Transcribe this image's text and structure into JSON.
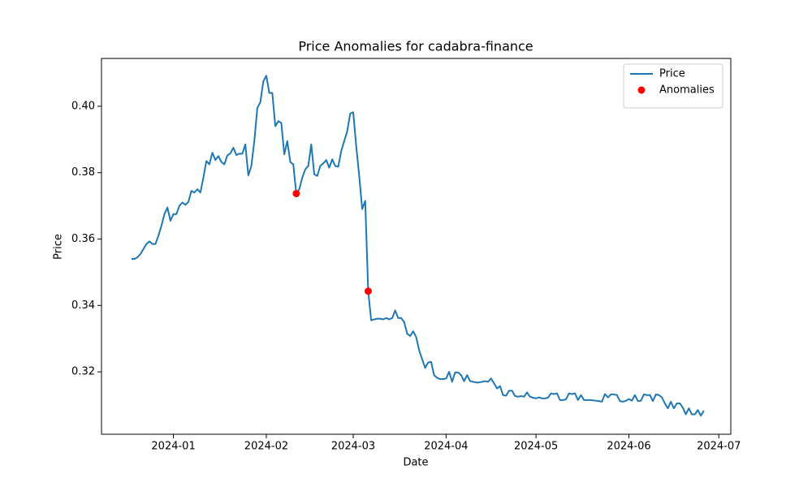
{
  "chart_data": {
    "type": "line",
    "title": "Price Anomalies for cadabra-finance",
    "xlabel": "Date",
    "ylabel": "Price",
    "legend": "upper right",
    "series": [
      {
        "name": "Price",
        "type": "line",
        "color": "#1f77b4",
        "x": [
          "2023-12-18",
          "2023-12-19",
          "2023-12-20",
          "2023-12-21",
          "2023-12-22",
          "2023-12-23",
          "2023-12-24",
          "2023-12-25",
          "2023-12-26",
          "2023-12-27",
          "2023-12-28",
          "2023-12-29",
          "2023-12-30",
          "2023-12-31",
          "2024-01-01",
          "2024-01-02",
          "2024-01-03",
          "2024-01-04",
          "2024-01-05",
          "2024-01-06",
          "2024-01-07",
          "2024-01-08",
          "2024-01-09",
          "2024-01-10",
          "2024-01-11",
          "2024-01-12",
          "2024-01-13",
          "2024-01-14",
          "2024-01-15",
          "2024-01-16",
          "2024-01-17",
          "2024-01-18",
          "2024-01-19",
          "2024-01-20",
          "2024-01-21",
          "2024-01-22",
          "2024-01-23",
          "2024-01-24",
          "2024-01-25",
          "2024-01-26",
          "2024-01-27",
          "2024-01-28",
          "2024-01-29",
          "2024-01-30",
          "2024-01-31",
          "2024-02-01",
          "2024-02-02",
          "2024-02-03",
          "2024-02-04",
          "2024-02-05",
          "2024-02-06",
          "2024-02-07",
          "2024-02-08",
          "2024-02-09",
          "2024-02-10",
          "2024-02-11",
          "2024-02-12",
          "2024-02-13",
          "2024-02-14",
          "2024-02-15",
          "2024-02-16",
          "2024-02-17",
          "2024-02-18",
          "2024-02-19",
          "2024-02-20",
          "2024-02-21",
          "2024-02-22",
          "2024-02-23",
          "2024-02-24",
          "2024-02-25",
          "2024-02-26",
          "2024-02-27",
          "2024-02-28",
          "2024-02-29",
          "2024-03-01",
          "2024-03-02",
          "2024-03-03",
          "2024-03-04",
          "2024-03-05",
          "2024-03-06",
          "2024-03-07",
          "2024-03-08",
          "2024-03-09",
          "2024-03-10",
          "2024-03-11",
          "2024-03-12",
          "2024-03-13",
          "2024-03-14",
          "2024-03-15",
          "2024-03-16",
          "2024-03-17",
          "2024-03-18",
          "2024-03-19",
          "2024-03-20",
          "2024-03-21",
          "2024-03-22",
          "2024-03-23",
          "2024-03-24",
          "2024-03-25",
          "2024-03-26",
          "2024-03-27",
          "2024-03-28",
          "2024-03-29",
          "2024-03-30",
          "2024-03-31",
          "2024-04-01",
          "2024-04-02",
          "2024-04-03",
          "2024-04-04",
          "2024-04-05",
          "2024-04-06",
          "2024-04-07",
          "2024-04-08",
          "2024-04-09",
          "2024-04-10",
          "2024-04-11",
          "2024-04-12",
          "2024-04-13",
          "2024-04-14",
          "2024-04-15",
          "2024-04-16",
          "2024-04-17",
          "2024-04-18",
          "2024-04-19",
          "2024-04-20",
          "2024-04-21",
          "2024-04-22",
          "2024-04-23",
          "2024-04-24",
          "2024-04-25",
          "2024-04-26",
          "2024-04-27",
          "2024-04-28",
          "2024-04-29",
          "2024-04-30",
          "2024-05-01",
          "2024-05-02",
          "2024-05-03",
          "2024-05-04",
          "2024-05-05",
          "2024-05-06",
          "2024-05-07",
          "2024-05-08",
          "2024-05-09",
          "2024-05-10",
          "2024-05-11",
          "2024-05-12",
          "2024-05-13",
          "2024-05-14",
          "2024-05-15",
          "2024-05-16",
          "2024-05-17",
          "2024-05-18",
          "2024-05-19",
          "2024-05-20",
          "2024-05-21",
          "2024-05-22",
          "2024-05-23",
          "2024-05-24",
          "2024-05-25",
          "2024-05-26",
          "2024-05-27",
          "2024-05-28",
          "2024-05-29",
          "2024-05-30",
          "2024-05-31",
          "2024-06-01",
          "2024-06-02",
          "2024-06-03",
          "2024-06-04",
          "2024-06-05",
          "2024-06-06",
          "2024-06-07",
          "2024-06-08",
          "2024-06-09",
          "2024-06-10",
          "2024-06-11",
          "2024-06-12",
          "2024-06-13",
          "2024-06-14",
          "2024-06-15",
          "2024-06-16",
          "2024-06-17",
          "2024-06-18",
          "2024-06-19",
          "2024-06-20",
          "2024-06-21",
          "2024-06-22",
          "2024-06-23",
          "2024-06-24",
          "2024-06-25",
          "2024-06-26"
        ],
        "values": [
          0.354,
          0.354,
          0.3545,
          0.3555,
          0.357,
          0.3585,
          0.3593,
          0.3585,
          0.3585,
          0.361,
          0.364,
          0.3675,
          0.3695,
          0.3655,
          0.3675,
          0.3675,
          0.37,
          0.371,
          0.3703,
          0.3712,
          0.3745,
          0.374,
          0.375,
          0.374,
          0.3785,
          0.3835,
          0.3825,
          0.386,
          0.3838,
          0.385,
          0.3832,
          0.3825,
          0.3852,
          0.3858,
          0.3875,
          0.3853,
          0.3857,
          0.3857,
          0.3885,
          0.3792,
          0.382,
          0.3895,
          0.3995,
          0.4012,
          0.4075,
          0.4092,
          0.404,
          0.404,
          0.394,
          0.3955,
          0.395,
          0.3855,
          0.3895,
          0.3832,
          0.3825,
          0.3737,
          0.375,
          0.3785,
          0.381,
          0.382,
          0.3885,
          0.3795,
          0.379,
          0.382,
          0.3828,
          0.3838,
          0.3815,
          0.384,
          0.382,
          0.3818,
          0.3865,
          0.3895,
          0.3925,
          0.3978,
          0.3982,
          0.388,
          0.379,
          0.369,
          0.3715,
          0.3443,
          0.3355,
          0.3358,
          0.336,
          0.336,
          0.3358,
          0.3362,
          0.3358,
          0.3362,
          0.3385,
          0.3362,
          0.3362,
          0.335,
          0.3315,
          0.3308,
          0.3322,
          0.3305,
          0.3265,
          0.3238,
          0.3212,
          0.3228,
          0.323,
          0.319,
          0.3182,
          0.3178,
          0.3178,
          0.318,
          0.32,
          0.317,
          0.3198,
          0.3198,
          0.319,
          0.3172,
          0.319,
          0.3172,
          0.317,
          0.3168,
          0.3168,
          0.317,
          0.3172,
          0.317,
          0.318,
          0.3165,
          0.315,
          0.3157,
          0.313,
          0.3128,
          0.3143,
          0.3143,
          0.3127,
          0.3125,
          0.3127,
          0.3125,
          0.3138,
          0.3125,
          0.3122,
          0.312,
          0.3123,
          0.312,
          0.312,
          0.3122,
          0.3135,
          0.3133,
          0.3135,
          0.3115,
          0.3115,
          0.3117,
          0.3135,
          0.3133,
          0.3135,
          0.3115,
          0.313,
          0.3115,
          0.3115,
          0.3115,
          0.3114,
          0.3113,
          0.3112,
          0.311,
          0.3133,
          0.3123,
          0.3132,
          0.3132,
          0.313,
          0.3112,
          0.311,
          0.3113,
          0.3118,
          0.3113,
          0.313,
          0.3112,
          0.3113,
          0.3132,
          0.313,
          0.313,
          0.3112,
          0.3132,
          0.313,
          0.3123,
          0.3105,
          0.309,
          0.311,
          0.309,
          0.3105,
          0.3105,
          0.3092,
          0.3072,
          0.309,
          0.3072,
          0.3072,
          0.3085,
          0.3068,
          0.3083
        ]
      },
      {
        "name": "Anomalies",
        "type": "scatter",
        "color": "#ff0000",
        "x": [
          "2024-02-11",
          "2024-03-06"
        ],
        "values": [
          0.3737,
          0.3443
        ]
      }
    ],
    "xlim": [
      "2023-12-08",
      "2024-07-05"
    ],
    "xticks": [
      {
        "value": "2024-01-01",
        "label": "2024-01"
      },
      {
        "value": "2024-02-01",
        "label": "2024-02"
      },
      {
        "value": "2024-03-01",
        "label": "2024-03"
      },
      {
        "value": "2024-04-01",
        "label": "2024-04"
      },
      {
        "value": "2024-05-01",
        "label": "2024-05"
      },
      {
        "value": "2024-06-01",
        "label": "2024-06"
      },
      {
        "value": "2024-07-01",
        "label": "2024-07"
      }
    ],
    "ylim": [
      0.3012,
      0.4144
    ],
    "yticks": [
      0.32,
      0.34,
      0.36,
      0.38,
      {
        "value": 0.4,
        "label": "0.40"
      }
    ]
  }
}
